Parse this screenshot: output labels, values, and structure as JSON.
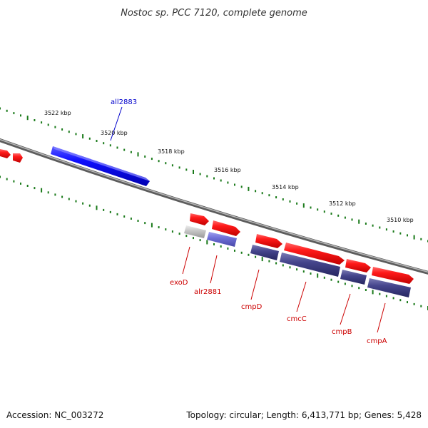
{
  "title": "Nostoc sp. PCC 7120, complete genome",
  "footer": {
    "accession": "Accession: NC_003272",
    "summary": "Topology: circular; Length: 6,413,771 bp; Genes: 5,428"
  },
  "colors": {
    "forward_gene": "#ff0000",
    "reverse_gene": "#3c3c82",
    "highlight_forward": "#0000ff",
    "highlight_reverse": "#7070d8",
    "pseudo_gene": "#c0c0c0",
    "backbone": "#7a7a7a",
    "tick": "#1a7a1a",
    "label_forward": "#cc0000",
    "label_highlight": "#0000cc"
  },
  "scale": {
    "ticks": [
      {
        "label": "3522 kbp"
      },
      {
        "label": "3520 kbp"
      },
      {
        "label": "3518 kbp"
      },
      {
        "label": "3516 kbp"
      },
      {
        "label": "3514 kbp"
      },
      {
        "label": "3512 kbp"
      },
      {
        "label": "3510 kbp"
      }
    ]
  },
  "gene_labels": [
    {
      "name": "all2883"
    },
    {
      "name": "exoD"
    },
    {
      "name": "alr2881"
    },
    {
      "name": "cmpD"
    },
    {
      "name": "cmcC"
    },
    {
      "name": "cmpB"
    },
    {
      "name": "cmpA"
    }
  ]
}
